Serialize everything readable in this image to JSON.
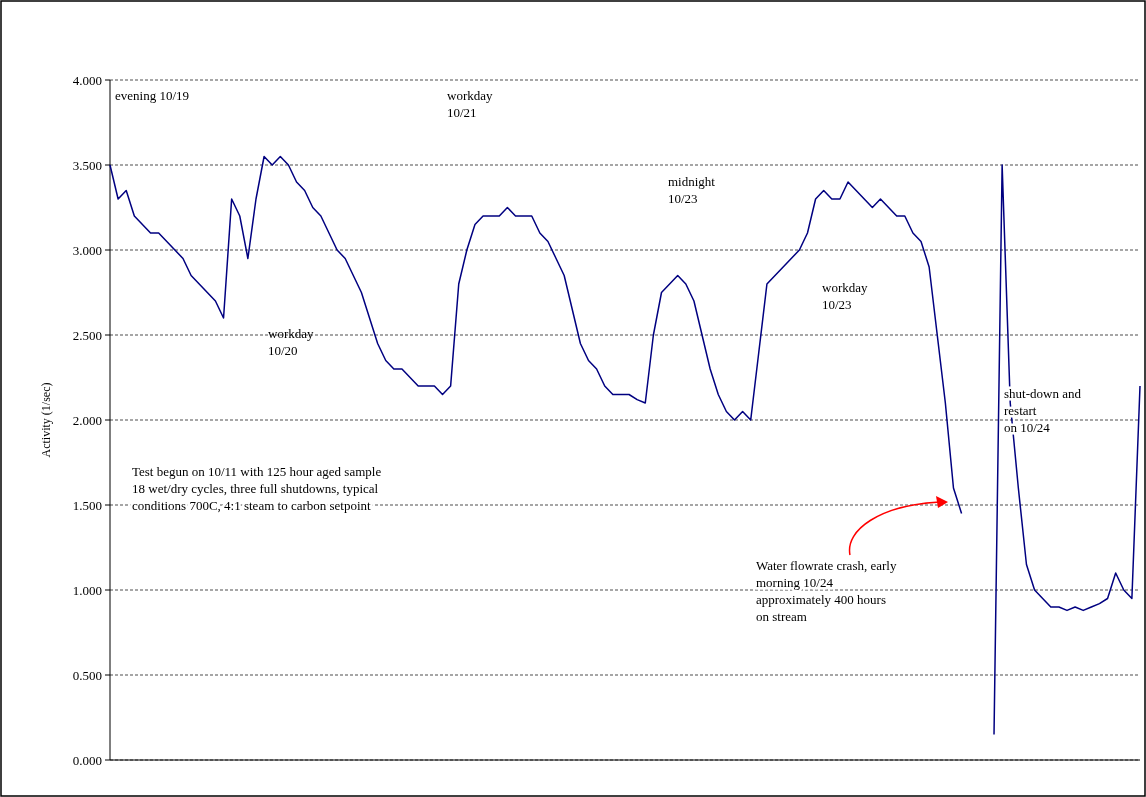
{
  "chart_data": {
    "type": "line",
    "ylabel": "Activity (1/sec)",
    "ylim": [
      0,
      4
    ],
    "yticks": [
      {
        "value": 0,
        "label": "0.000"
      },
      {
        "value": 0.5,
        "label": "0.500"
      },
      {
        "value": 1,
        "label": "1.000"
      },
      {
        "value": 1.5,
        "label": "1.500"
      },
      {
        "value": 2,
        "label": "2.000"
      },
      {
        "value": 2.5,
        "label": "2.500"
      },
      {
        "value": 3,
        "label": "3.000"
      },
      {
        "value": 3.5,
        "label": "3.500"
      },
      {
        "value": 4,
        "label": "4.000"
      }
    ],
    "grid": "y",
    "tick_labels": "y",
    "marker": "none",
    "line_style": "solid",
    "categories": [
      null,
      null,
      null,
      null,
      null,
      null,
      null,
      null,
      null,
      null,
      null,
      null,
      null,
      null,
      null,
      null,
      null,
      null,
      null,
      null,
      null,
      null,
      null,
      null,
      null,
      null,
      null,
      null,
      null,
      null,
      null,
      null,
      null,
      null,
      null,
      null,
      null,
      null,
      null,
      null,
      null,
      null,
      null,
      null,
      null,
      null,
      null,
      null,
      null,
      null,
      null,
      null,
      null,
      null,
      null,
      null,
      null,
      null,
      null,
      null,
      null,
      null,
      null,
      null,
      null,
      null,
      null,
      null,
      null,
      null,
      null,
      null,
      null,
      null,
      null,
      null,
      null,
      null,
      null,
      null,
      null,
      null,
      null,
      null,
      null,
      null,
      null,
      null,
      null,
      null,
      null,
      null,
      null,
      null,
      null,
      null,
      null,
      null,
      null,
      null,
      null,
      null,
      null,
      null,
      null,
      null,
      null,
      null,
      null,
      null,
      null,
      null,
      null,
      null,
      null,
      null,
      null,
      null,
      null,
      null,
      null,
      null,
      null,
      null,
      null,
      null,
      null,
      null
    ],
    "series": [
      {
        "color": "#000080",
        "values": [
          3.5,
          3.3,
          3.35,
          3.2,
          3.15,
          3.1,
          3.1,
          3.05,
          3.0,
          2.95,
          2.85,
          2.8,
          2.75,
          2.7,
          2.6,
          3.3,
          3.2,
          2.95,
          3.3,
          3.55,
          3.5,
          3.55,
          3.5,
          3.4,
          3.35,
          3.25,
          3.2,
          3.1,
          3.0,
          2.95,
          2.85,
          2.75,
          2.6,
          2.45,
          2.35,
          2.3,
          2.3,
          2.25,
          2.2,
          2.2,
          2.2,
          2.15,
          2.2,
          2.8,
          3.0,
          3.15,
          3.2,
          3.2,
          3.2,
          3.25,
          3.2,
          3.2,
          3.2,
          3.1,
          3.05,
          2.95,
          2.85,
          2.65,
          2.45,
          2.35,
          2.3,
          2.2,
          2.15,
          2.15,
          2.15,
          2.12,
          2.1,
          2.5,
          2.75,
          2.8,
          2.85,
          2.8,
          2.7,
          2.5,
          2.3,
          2.15,
          2.05,
          2.0,
          2.05,
          2.0,
          2.4,
          2.8,
          2.85,
          2.9,
          2.95,
          3.0,
          3.1,
          3.3,
          3.35,
          3.3,
          3.3,
          3.4,
          3.35,
          3.3,
          3.25,
          3.3,
          3.25,
          3.2,
          3.2,
          3.1,
          3.05,
          2.9,
          2.5,
          2.1,
          1.6,
          1.45,
          null,
          null,
          null,
          null,
          null,
          null,
          null,
          null,
          null,
          null,
          null,
          null,
          null,
          null,
          null,
          null,
          null,
          null,
          null,
          null,
          null,
          null
        ]
      },
      {
        "color": "#000080",
        "values": [
          null,
          null,
          null,
          null,
          null,
          null,
          null,
          null,
          null,
          null,
          null,
          null,
          null,
          null,
          null,
          null,
          null,
          null,
          null,
          null,
          null,
          null,
          null,
          null,
          null,
          null,
          null,
          null,
          null,
          null,
          null,
          null,
          null,
          null,
          null,
          null,
          null,
          null,
          null,
          null,
          null,
          null,
          null,
          null,
          null,
          null,
          null,
          null,
          null,
          null,
          null,
          null,
          null,
          null,
          null,
          null,
          null,
          null,
          null,
          null,
          null,
          null,
          null,
          null,
          null,
          null,
          null,
          null,
          null,
          null,
          null,
          null,
          null,
          null,
          null,
          null,
          null,
          null,
          null,
          null,
          null,
          null,
          null,
          null,
          null,
          null,
          null,
          null,
          null,
          null,
          null,
          null,
          null,
          null,
          null,
          null,
          null,
          null,
          null,
          null,
          null,
          null,
          null,
          null,
          null,
          null,
          null,
          null,
          null,
          0.15,
          3.5,
          2.1,
          1.6,
          1.15,
          1.0,
          0.95,
          0.9,
          0.9,
          0.88,
          0.9,
          0.88,
          0.9,
          0.92,
          0.95,
          1.1,
          1.0,
          0.95,
          2.2
        ]
      }
    ],
    "annotations": [
      "evening 10/19",
      "workday\n10/21",
      "midnight\n10/23",
      "workday\n10/20",
      "workday\n10/23",
      "shut-down and\nrestart\non 10/24",
      "Test begun on 10/11 with 125 hour aged sample\n18 wet/dry cycles, three full shutdowns, typical\nconditions 700C, 4:1 steam to carbon setpoint",
      "Water flowrate crash, early\nmorning 10/24\napproximately 400 hours\non stream"
    ]
  }
}
